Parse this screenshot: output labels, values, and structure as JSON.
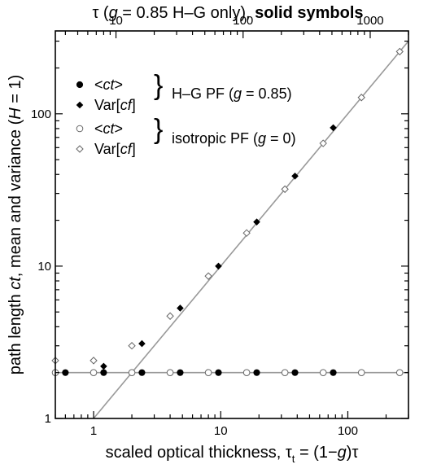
{
  "chart_data": {
    "type": "scatter",
    "x_scale": "log",
    "y_scale": "log",
    "xlim": [
      0.5,
      300
    ],
    "ylim": [
      1,
      350
    ],
    "x_ticks": [
      {
        "value": 1,
        "label": "1"
      },
      {
        "value": 10,
        "label": "10"
      },
      {
        "value": 100,
        "label": "100"
      }
    ],
    "y_ticks": [
      {
        "value": 1,
        "label": "1"
      },
      {
        "value": 10,
        "label": "10"
      },
      {
        "value": 100,
        "label": "100"
      }
    ],
    "top_axis": {
      "label_parts": [
        "τ (",
        "g",
        " = 0.85 H–G only), ",
        "solid symbols"
      ],
      "ticks": [
        {
          "value": 10,
          "label": "10"
        },
        {
          "value": 100,
          "label": "100"
        },
        {
          "value": 1000,
          "label": "1000"
        }
      ]
    },
    "xlabel_parts": [
      "scaled optical thickness, τ",
      "t",
      " = (1−",
      "g",
      ")τ"
    ],
    "ylabel_parts": [
      "path length ",
      "ct",
      ", mean and variance (",
      "H",
      " = 1)"
    ],
    "grid": false,
    "legend": {
      "placement": "top-left",
      "entries": [
        {
          "pre": "<",
          "it": "ct",
          "post": ">",
          "marker": "filled-circle"
        },
        {
          "pre": "Var[",
          "it": "cf",
          "post": "]",
          "marker": "filled-diamond"
        },
        {
          "pre": "<",
          "it": "ct",
          "post": ">",
          "marker": "open-circle"
        },
        {
          "pre": "Var[",
          "it": "cf",
          "post": "]",
          "marker": "open-diamond"
        }
      ],
      "groups": [
        {
          "parts": [
            "H–G PF (",
            "g",
            " = 0.85)"
          ]
        },
        {
          "parts": [
            "isotropic PF (",
            "g",
            " = 0)"
          ]
        }
      ]
    },
    "reference_lines": [
      {
        "name": "mean",
        "x": [
          0.5,
          300
        ],
        "y": [
          2,
          2
        ],
        "color": "#999999"
      },
      {
        "name": "variance",
        "x": [
          1,
          300
        ],
        "y": [
          1,
          300
        ],
        "color": "#999999"
      }
    ],
    "series": [
      {
        "marker": "filled-circle",
        "x": [
          0.6,
          1.2,
          2.4,
          4.8,
          9.6,
          19.2,
          38.4,
          76.8
        ],
        "y": [
          2,
          2,
          2,
          2,
          2,
          2,
          2,
          2
        ]
      },
      {
        "marker": "filled-diamond",
        "x": [
          1.2,
          2.4,
          4.8,
          9.6,
          19.2,
          38.4,
          76.8
        ],
        "y": [
          2.2,
          3.1,
          5.3,
          10,
          19.5,
          39,
          81
        ]
      },
      {
        "marker": "open-circle",
        "x": [
          0.5,
          1,
          2,
          4,
          8,
          16,
          32,
          64,
          128,
          256
        ],
        "y": [
          2,
          2,
          2,
          2,
          2,
          2,
          2,
          2,
          2,
          2
        ]
      },
      {
        "marker": "open-diamond",
        "x": [
          0.5,
          1,
          2,
          4,
          8,
          16,
          32,
          64,
          128,
          256
        ],
        "y": [
          2.4,
          2.4,
          3,
          4.7,
          8.6,
          16.5,
          32,
          64,
          128,
          256
        ]
      }
    ]
  }
}
